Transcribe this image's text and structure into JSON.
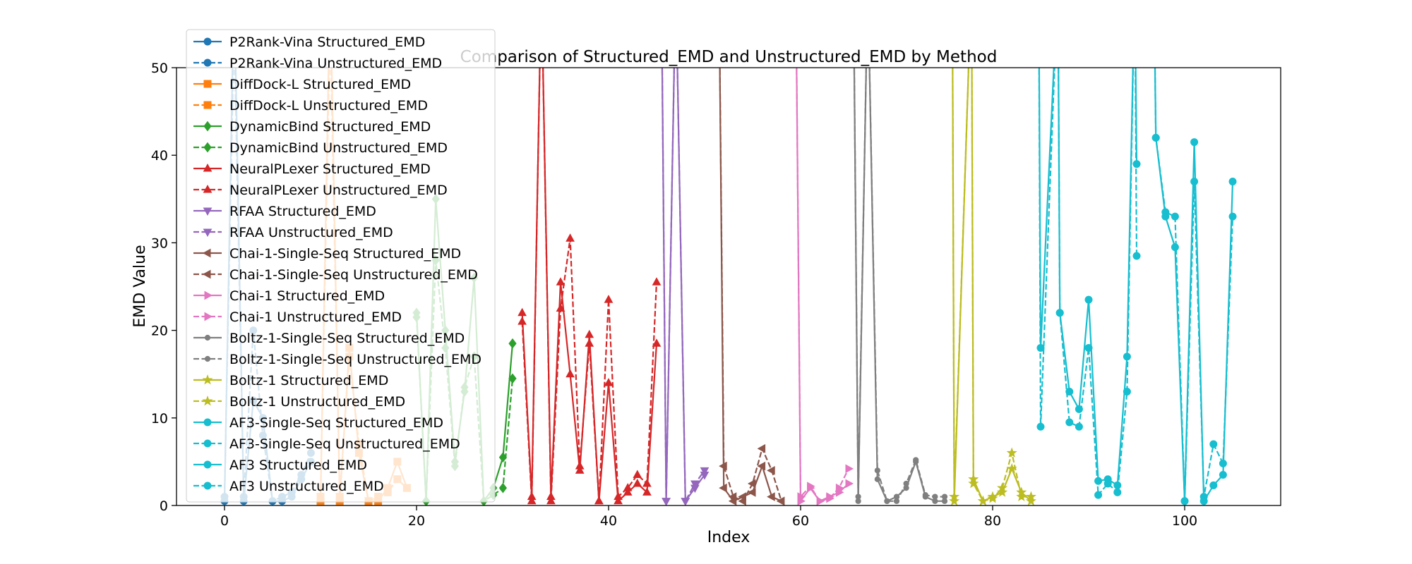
{
  "chart_data": {
    "type": "line",
    "title": "Comparison of Structured_EMD and Unstructured_EMD by Method",
    "xlabel": "Index",
    "ylabel": "EMD Value",
    "xlim": [
      -5,
      110
    ],
    "ylim": [
      0,
      50
    ],
    "xticks": [
      0,
      20,
      40,
      60,
      80,
      100
    ],
    "yticks": [
      0,
      10,
      20,
      30,
      40,
      50
    ],
    "grid": false,
    "legend_location": "upper-left",
    "series": [
      {
        "name": "P2Rank-Vina Structured_EMD",
        "color": "#1f77b4",
        "linestyle": "solid",
        "marker": "circle",
        "x": [
          0,
          1,
          2,
          3,
          4,
          5,
          6,
          7,
          8,
          9
        ],
        "y": [
          0.5,
          60,
          0.5,
          12,
          10,
          0.5,
          0.5,
          1,
          3,
          5
        ]
      },
      {
        "name": "P2Rank-Vina Unstructured_EMD",
        "color": "#1f77b4",
        "linestyle": "dashed",
        "marker": "circle",
        "x": [
          0,
          1,
          2,
          3,
          4,
          5,
          6,
          7,
          8,
          9
        ],
        "y": [
          1,
          55,
          1,
          20,
          8,
          0.5,
          1,
          1.5,
          3.5,
          6
        ]
      },
      {
        "name": "DiffDock-L Structured_EMD",
        "color": "#ff7f0e",
        "linestyle": "solid",
        "marker": "square",
        "x": [
          10,
          11,
          12,
          13,
          14,
          15,
          16,
          17,
          18,
          19
        ],
        "y": [
          0.5,
          60,
          0.5,
          18,
          6,
          0.5,
          0.5,
          2,
          5,
          2
        ]
      },
      {
        "name": "DiffDock-L Unstructured_EMD",
        "color": "#ff7f0e",
        "linestyle": "dashed",
        "marker": "square",
        "x": [
          10,
          11,
          12,
          13,
          14,
          15,
          16,
          17,
          18,
          19
        ],
        "y": [
          1,
          55,
          1,
          17,
          7,
          0.5,
          1,
          1.5,
          3,
          2
        ]
      },
      {
        "name": "DynamicBind Structured_EMD",
        "color": "#2ca02c",
        "linestyle": "solid",
        "marker": "diamond",
        "x": [
          20,
          21,
          22,
          23,
          24,
          25,
          26,
          27,
          28,
          29,
          30
        ],
        "y": [
          22,
          0.5,
          35,
          20,
          5,
          13,
          26,
          0.5,
          2,
          5.5,
          18.5
        ]
      },
      {
        "name": "DynamicBind Unstructured_EMD",
        "color": "#2ca02c",
        "linestyle": "dashed",
        "marker": "diamond",
        "x": [
          20,
          21,
          22,
          23,
          24,
          25,
          26,
          27,
          28,
          29,
          30
        ],
        "y": [
          21.5,
          0.5,
          28,
          18,
          4.5,
          13.5,
          17,
          0.5,
          1.2,
          2,
          14.5
        ]
      },
      {
        "name": "NeuralPLexer Structured_EMD",
        "color": "#d62728",
        "linestyle": "solid",
        "marker": "triangle-up",
        "x": [
          31,
          32,
          33,
          34,
          35,
          36,
          37,
          38,
          39,
          40,
          41,
          42,
          43,
          44,
          45
        ],
        "y": [
          22,
          1,
          60,
          1,
          25.5,
          15,
          4,
          19.5,
          0.5,
          14,
          0.5,
          1.5,
          2.5,
          1.5,
          18.5
        ]
      },
      {
        "name": "NeuralPLexer Unstructured_EMD",
        "color": "#d62728",
        "linestyle": "dashed",
        "marker": "triangle-up",
        "x": [
          31,
          32,
          33,
          34,
          35,
          36,
          37,
          38,
          39,
          40,
          41,
          42,
          43,
          44,
          45
        ],
        "y": [
          21,
          0.5,
          60,
          0.5,
          22.5,
          30.5,
          4.5,
          18.5,
          0.5,
          23.5,
          1,
          2,
          3.5,
          2.5,
          25.5
        ]
      },
      {
        "name": "RFAA Structured_EMD",
        "color": "#9467bd",
        "linestyle": "solid",
        "marker": "triangle-down",
        "x": [
          45.5,
          46,
          47,
          48,
          49,
          50
        ],
        "y": [
          60,
          0.5,
          60,
          0.5,
          2,
          3.5
        ]
      },
      {
        "name": "RFAA Unstructured_EMD",
        "color": "#9467bd",
        "linestyle": "dashed",
        "marker": "triangle-down",
        "x": [
          45.5,
          46,
          47,
          48,
          49,
          50
        ],
        "y": [
          60,
          0.5,
          60,
          0.5,
          2.5,
          4
        ]
      },
      {
        "name": "Chai-1-Single-Seq Structured_EMD",
        "color": "#8c564b",
        "linestyle": "solid",
        "marker": "triangle-left",
        "x": [
          51.5,
          52,
          53,
          54,
          55,
          56,
          57,
          58
        ],
        "y": [
          60,
          2,
          0.5,
          1,
          1.5,
          4.5,
          1,
          0.5
        ]
      },
      {
        "name": "Chai-1-Single-Seq Unstructured_EMD",
        "color": "#8c564b",
        "linestyle": "dashed",
        "marker": "triangle-left",
        "x": [
          51.5,
          52,
          53,
          54,
          55,
          56,
          57,
          58
        ],
        "y": [
          60,
          4.5,
          1,
          0.5,
          2.5,
          6.5,
          4,
          0.5
        ]
      },
      {
        "name": "Chai-1 Structured_EMD",
        "color": "#e377c2",
        "linestyle": "solid",
        "marker": "triangle-right",
        "x": [
          59.5,
          60,
          61,
          62,
          63,
          64,
          65
        ],
        "y": [
          60,
          0.5,
          2,
          0.5,
          1,
          1.5,
          2.5
        ]
      },
      {
        "name": "Chai-1 Unstructured_EMD",
        "color": "#e377c2",
        "linestyle": "dashed",
        "marker": "triangle-right",
        "x": [
          59.5,
          60,
          61,
          62,
          63,
          64,
          65
        ],
        "y": [
          60,
          1,
          2.2,
          0.5,
          0.8,
          2,
          4.2
        ]
      },
      {
        "name": "Boltz-1-Single-Seq Structured_EMD",
        "color": "#7f7f7f",
        "linestyle": "solid",
        "marker": "circle-small",
        "x": [
          65.5,
          66,
          67,
          68,
          69,
          70,
          71,
          72,
          73,
          74,
          75
        ],
        "y": [
          60,
          0.5,
          60,
          3,
          0.5,
          1,
          2,
          5,
          1,
          0.5,
          0.5
        ]
      },
      {
        "name": "Boltz-1-Single-Seq Unstructured_EMD",
        "color": "#7f7f7f",
        "linestyle": "dashed",
        "marker": "circle-small",
        "x": [
          65.5,
          66,
          67,
          68,
          69,
          70,
          71,
          72,
          73,
          74,
          75
        ],
        "y": [
          60,
          1,
          60,
          4,
          0.5,
          0.5,
          2.5,
          5.2,
          1.2,
          1,
          1
        ]
      },
      {
        "name": "Boltz-1 Structured_EMD",
        "color": "#bcbd22",
        "linestyle": "solid",
        "marker": "star",
        "x": [
          75.8,
          76,
          77.8,
          78,
          79,
          80,
          81,
          82,
          83,
          84
        ],
        "y": [
          60,
          0.5,
          60,
          3,
          0.5,
          1,
          1.5,
          4.2,
          1.5,
          0.5
        ]
      },
      {
        "name": "Boltz-1 Unstructured_EMD",
        "color": "#bcbd22",
        "linestyle": "dashed",
        "marker": "star",
        "x": [
          75.8,
          76,
          77.8,
          78,
          79,
          80,
          81,
          82,
          83,
          84
        ],
        "y": [
          60,
          1,
          60,
          2.5,
          0.5,
          0.8,
          2,
          6,
          1,
          1
        ]
      },
      {
        "name": "AF3-Single-Seq Structured_EMD",
        "color": "#17becf",
        "linestyle": "solid",
        "marker": "circle",
        "x": [
          84.8,
          85,
          86.8,
          87,
          88,
          89,
          90,
          91,
          92,
          93,
          94,
          94.8,
          95
        ],
        "y": [
          60,
          18,
          60,
          22,
          13,
          11,
          23.5,
          2.8,
          3,
          2.3,
          17,
          60,
          39
        ]
      },
      {
        "name": "AF3-Single-Seq Unstructured_EMD",
        "color": "#17becf",
        "linestyle": "dashed",
        "marker": "circle",
        "x": [
          84.8,
          85,
          86.8,
          87,
          88,
          89,
          90,
          91,
          92,
          93,
          94,
          94.8,
          95
        ],
        "y": [
          60,
          9,
          60,
          22,
          9.5,
          9,
          18,
          1.2,
          2.5,
          1.5,
          13,
          60,
          28.5
        ]
      },
      {
        "name": "AF3 Structured_EMD",
        "color": "#17becf",
        "linestyle": "solid",
        "marker": "circle",
        "x": [
          96.8,
          97,
          98,
          99,
          100,
          101,
          102,
          103,
          104,
          105
        ],
        "y": [
          60,
          42,
          33,
          29.5,
          0.5,
          41.5,
          0.5,
          2.3,
          3.5,
          37
        ]
      },
      {
        "name": "AF3 Unstructured_EMD",
        "color": "#17becf",
        "linestyle": "dashed",
        "marker": "circle",
        "x": [
          96.8,
          97,
          98,
          99,
          100,
          101,
          102,
          103,
          104,
          105
        ],
        "y": [
          60,
          42,
          33.5,
          33,
          0.5,
          37,
          1,
          7,
          4.8,
          33
        ]
      }
    ]
  }
}
